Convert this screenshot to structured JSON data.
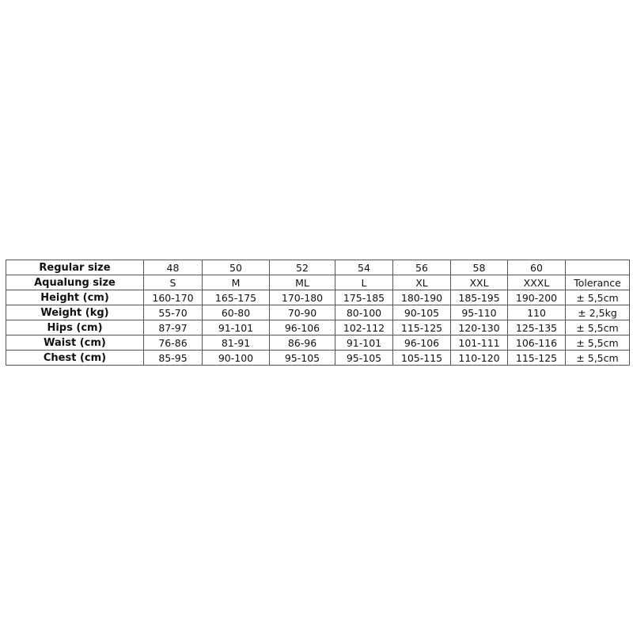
{
  "size_chart": {
    "rows": [
      {
        "label": "Regular size",
        "values": [
          "48",
          "50",
          "52",
          "54",
          "56",
          "58",
          "60"
        ],
        "tolerance": ""
      },
      {
        "label": "Aqualung size",
        "values": [
          "S",
          "M",
          "ML",
          "L",
          "XL",
          "XXL",
          "XXXL"
        ],
        "tolerance": "Tolerance"
      },
      {
        "label": "Height (cm)",
        "values": [
          "160-170",
          "165-175",
          "170-180",
          "175-185",
          "180-190",
          "185-195",
          "190-200"
        ],
        "tolerance": "± 5,5cm"
      },
      {
        "label": "Weight (kg)",
        "values": [
          "55-70",
          "60-80",
          "70-90",
          "80-100",
          "90-105",
          "95-110",
          "110"
        ],
        "tolerance": "± 2,5kg"
      },
      {
        "label": "Hips (cm)",
        "values": [
          "87-97",
          "91-101",
          "96-106",
          "102-112",
          "115-125",
          "120-130",
          "125-135"
        ],
        "tolerance": "± 5,5cm"
      },
      {
        "label": "Waist (cm)",
        "values": [
          "76-86",
          "81-91",
          "86-96",
          "91-101",
          "96-106",
          "101-111",
          "106-116"
        ],
        "tolerance": "± 5,5cm"
      },
      {
        "label": "Chest (cm)",
        "values": [
          "85-95",
          "90-100",
          "95-105",
          "95-105",
          "105-115",
          "110-120",
          "115-125"
        ],
        "tolerance": "± 5,5cm"
      }
    ]
  }
}
